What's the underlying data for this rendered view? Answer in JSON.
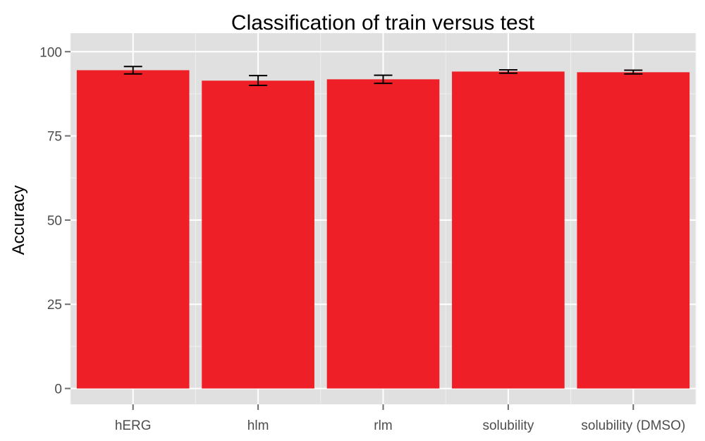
{
  "chart_data": {
    "type": "bar",
    "title": "Classification of train versus test",
    "xlabel": "",
    "ylabel": "Accuracy",
    "categories": [
      "hERG",
      "hlm",
      "rlm",
      "solubility",
      "solubility (DMSO)"
    ],
    "values": [
      94.5,
      91.4,
      91.8,
      94.1,
      93.9
    ],
    "error_low": [
      93.4,
      90.0,
      90.6,
      93.6,
      93.4
    ],
    "error_high": [
      95.6,
      92.9,
      93.0,
      94.6,
      94.5
    ],
    "ylim": [
      -4.7,
      105.5
    ],
    "yticks": [
      0,
      25,
      50,
      75,
      100
    ],
    "grid": true,
    "legend": "none",
    "colors": {
      "bar": "#ee1f26",
      "panel": "#e0e0e0",
      "grid_major": "#ffffff",
      "grid_minor": "#efefef",
      "errorbar": "#000000",
      "tick_text": "#4d4d4d",
      "tick_mark": "#6e6e6e"
    }
  }
}
